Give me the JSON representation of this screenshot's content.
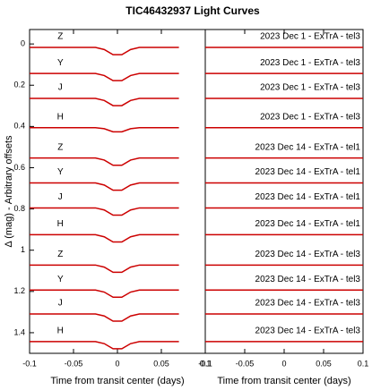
{
  "chart_data": [
    {
      "type": "line",
      "title": "TIC46432937 Light Curves",
      "ylabel": "Δ (mag) - Arbitrary offsets",
      "xlabel": "Time from transit center (days)",
      "xlim": [
        -0.1,
        0.1
      ],
      "xticks": [
        -0.1,
        -0.05,
        0,
        0.05,
        0.1
      ],
      "ylim": [
        -0.07,
        1.5
      ],
      "yticks": [
        0,
        0.2,
        0.4,
        0.6,
        0.8,
        1,
        1.2,
        1.4
      ],
      "y_inverted": true,
      "x": [
        -0.1,
        -0.025,
        -0.015,
        -0.005,
        0.005,
        0.015,
        0.025,
        0.07
      ],
      "series": [
        {
          "name": "Z",
          "color": "#cc0000",
          "values": [
            0.017,
            0.017,
            0.027,
            0.052,
            0.052,
            0.027,
            0.017,
            0.017
          ]
        },
        {
          "name": "Y",
          "color": "#cc0000",
          "values": [
            0.143,
            0.143,
            0.153,
            0.178,
            0.178,
            0.153,
            0.143,
            0.143
          ]
        },
        {
          "name": "J",
          "color": "#cc0000",
          "values": [
            0.264,
            0.264,
            0.274,
            0.299,
            0.299,
            0.274,
            0.264,
            0.264
          ]
        },
        {
          "name": "H",
          "color": "#cc0000",
          "values": [
            0.406,
            0.406,
            0.411,
            0.426,
            0.426,
            0.411,
            0.406,
            0.406
          ]
        },
        {
          "name": "Z",
          "color": "#cc0000",
          "values": [
            0.553,
            0.553,
            0.563,
            0.588,
            0.588,
            0.563,
            0.553,
            0.553
          ]
        },
        {
          "name": "Y",
          "color": "#cc0000",
          "values": [
            0.674,
            0.674,
            0.684,
            0.709,
            0.709,
            0.684,
            0.674,
            0.674
          ]
        },
        {
          "name": "J",
          "color": "#cc0000",
          "values": [
            0.795,
            0.795,
            0.805,
            0.83,
            0.83,
            0.805,
            0.795,
            0.795
          ]
        },
        {
          "name": "H",
          "color": "#cc0000",
          "values": [
            0.925,
            0.925,
            0.935,
            0.96,
            0.96,
            0.935,
            0.925,
            0.925
          ]
        },
        {
          "name": "Z",
          "color": "#cc0000",
          "values": [
            1.072,
            1.072,
            1.082,
            1.107,
            1.107,
            1.082,
            1.072,
            1.072
          ]
        },
        {
          "name": "Y",
          "color": "#cc0000",
          "values": [
            1.193,
            1.193,
            1.203,
            1.228,
            1.228,
            1.203,
            1.193,
            1.193
          ]
        },
        {
          "name": "J",
          "color": "#cc0000",
          "values": [
            1.309,
            1.309,
            1.319,
            1.344,
            1.344,
            1.319,
            1.309,
            1.309
          ]
        },
        {
          "name": "H",
          "color": "#cc0000",
          "values": [
            1.443,
            1.443,
            1.453,
            1.478,
            1.478,
            1.453,
            1.443,
            1.443
          ]
        }
      ]
    },
    {
      "type": "line",
      "xlabel": "Time from transit center (days)",
      "xlim": [
        -0.1,
        0.1
      ],
      "xticks": [
        -0.1,
        -0.05,
        0,
        0.05,
        0.1
      ],
      "ylim": [
        -0.07,
        1.5
      ],
      "y_inverted": true,
      "x": [
        -0.1,
        0.1
      ],
      "series": [
        {
          "name": "2023 Dec 1 - ExTrA - tel3",
          "color": "#cc0000",
          "values": [
            0.017,
            0.017
          ]
        },
        {
          "name": "2023 Dec 1 - ExTrA - tel3",
          "color": "#cc0000",
          "values": [
            0.143,
            0.143
          ]
        },
        {
          "name": "2023 Dec 1 - ExTrA - tel3",
          "color": "#cc0000",
          "values": [
            0.264,
            0.264
          ]
        },
        {
          "name": "2023 Dec 1 - ExTrA - tel3",
          "color": "#cc0000",
          "values": [
            0.406,
            0.406
          ]
        },
        {
          "name": "2023 Dec 14 - ExTrA - tel1",
          "color": "#cc0000",
          "values": [
            0.553,
            0.553
          ]
        },
        {
          "name": "2023 Dec 14 - ExTrA - tel1",
          "color": "#cc0000",
          "values": [
            0.674,
            0.674
          ]
        },
        {
          "name": "2023 Dec 14 - ExTrA - tel1",
          "color": "#cc0000",
          "values": [
            0.795,
            0.795
          ]
        },
        {
          "name": "2023 Dec 14 - ExTrA - tel1",
          "color": "#cc0000",
          "values": [
            0.925,
            0.925
          ]
        },
        {
          "name": "2023 Dec 14 - ExTrA - tel3",
          "color": "#cc0000",
          "values": [
            1.072,
            1.072
          ]
        },
        {
          "name": "2023 Dec 14 - ExTrA - tel3",
          "color": "#cc0000",
          "values": [
            1.193,
            1.193
          ]
        },
        {
          "name": "2023 Dec 14 - ExTrA - tel3",
          "color": "#cc0000",
          "values": [
            1.309,
            1.309
          ]
        },
        {
          "name": "2023 Dec 14 - ExTrA - tel3",
          "color": "#cc0000",
          "values": [
            1.443,
            1.443
          ]
        }
      ]
    }
  ]
}
